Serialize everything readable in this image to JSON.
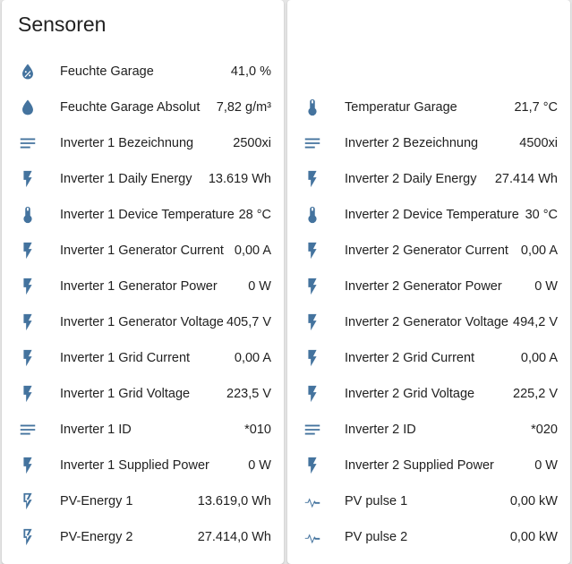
{
  "card": {
    "title": "Sensoren"
  },
  "colors": {
    "icon": "#44739e",
    "text": "#212121",
    "card": "#ffffff",
    "background": "#e5e5e5"
  },
  "left": [
    {
      "icon": "water-percent-icon",
      "name": "Feuchte Garage",
      "value": "41,0 %"
    },
    {
      "icon": "water-drop-icon",
      "name": "Feuchte Garage Absolut",
      "value": "7,82 g/m³"
    },
    {
      "icon": "text-lines-icon",
      "name": "Inverter 1 Bezeichnung",
      "value": "2500xi"
    },
    {
      "icon": "flash-icon",
      "name": "Inverter 1 Daily Energy",
      "value": "13.619 Wh"
    },
    {
      "icon": "thermometer-icon",
      "name": "Inverter 1 Device Temperature",
      "value": "28 °C"
    },
    {
      "icon": "flash-icon",
      "name": "Inverter 1 Generator Current",
      "value": "0,00 A"
    },
    {
      "icon": "flash-icon",
      "name": "Inverter 1 Generator Power",
      "value": "0 W"
    },
    {
      "icon": "flash-icon",
      "name": "Inverter 1 Generator Voltage",
      "value": "405,7 V"
    },
    {
      "icon": "flash-icon",
      "name": "Inverter 1 Grid Current",
      "value": "0,00 A"
    },
    {
      "icon": "flash-icon",
      "name": "Inverter 1 Grid Voltage",
      "value": "223,5 V"
    },
    {
      "icon": "text-lines-icon",
      "name": "Inverter 1 ID",
      "value": "*010"
    },
    {
      "icon": "flash-icon",
      "name": "Inverter 1 Supplied Power",
      "value": "0 W"
    },
    {
      "icon": "flash-outline-icon",
      "name": "PV-Energy 1",
      "value": "13.619,0 Wh"
    },
    {
      "icon": "flash-outline-icon",
      "name": "PV-Energy 2",
      "value": "27.414,0 Wh"
    }
  ],
  "right": [
    {
      "icon": "thermometer-icon",
      "name": "Temperatur Garage",
      "value": "21,7 °C"
    },
    {
      "icon": "text-lines-icon",
      "name": "Inverter 2 Bezeichnung",
      "value": "4500xi"
    },
    {
      "icon": "flash-icon",
      "name": "Inverter 2 Daily Energy",
      "value": "27.414 Wh"
    },
    {
      "icon": "thermometer-icon",
      "name": "Inverter 2 Device Temperature",
      "value": "30 °C"
    },
    {
      "icon": "flash-icon",
      "name": "Inverter 2 Generator Current",
      "value": "0,00 A"
    },
    {
      "icon": "flash-icon",
      "name": "Inverter 2 Generator Power",
      "value": "0 W"
    },
    {
      "icon": "flash-icon",
      "name": "Inverter 2 Generator Voltage",
      "value": "494,2 V"
    },
    {
      "icon": "flash-icon",
      "name": "Inverter 2 Grid Current",
      "value": "0,00 A"
    },
    {
      "icon": "flash-icon",
      "name": "Inverter 2 Grid Voltage",
      "value": "225,2 V"
    },
    {
      "icon": "text-lines-icon",
      "name": "Inverter 2 ID",
      "value": "*020"
    },
    {
      "icon": "flash-icon",
      "name": "Inverter 2 Supplied Power",
      "value": "0 W"
    },
    {
      "icon": "pulse-icon",
      "name": "PV pulse 1",
      "value": "0,00 kW"
    },
    {
      "icon": "pulse-icon",
      "name": "PV pulse 2",
      "value": "0,00 kW"
    }
  ]
}
